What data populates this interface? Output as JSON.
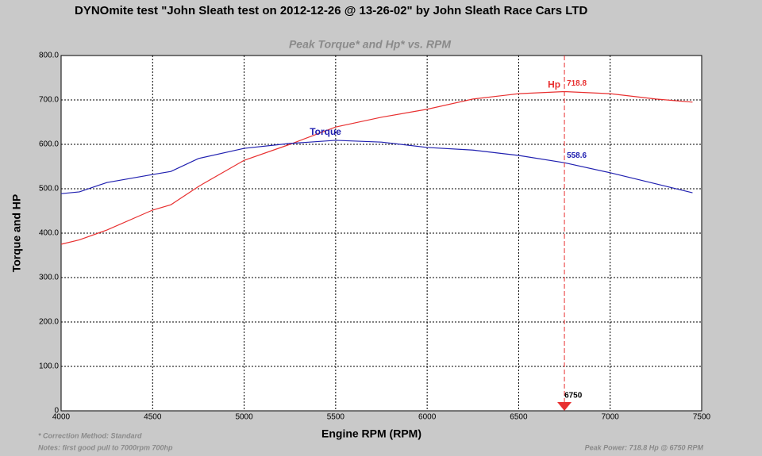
{
  "chart_data": {
    "type": "line",
    "title": "DYNOmite test \"John Sleath test on 2012-12-26 @ 13-26-02\" by John Sleath Race Cars LTD",
    "subtitle": "Peak Torque* and Hp* vs. RPM",
    "x_label": "Engine RPM (RPM)",
    "y_label": "Torque and HP",
    "x": [
      4000,
      4100,
      4250,
      4500,
      4600,
      4750,
      5000,
      5250,
      5500,
      5750,
      6000,
      6250,
      6500,
      6750,
      7000,
      7250,
      7450
    ],
    "series": [
      {
        "name": "Hp",
        "color": "#e83030",
        "values": [
          375,
          385,
          407,
          452,
          464,
          505,
          564,
          600,
          639,
          661,
          679,
          702,
          714,
          718.8,
          714,
          702,
          695
        ]
      },
      {
        "name": "Torque",
        "color": "#2020b0",
        "values": [
          489,
          493,
          514,
          532,
          539,
          568,
          591,
          602,
          609,
          605,
          593,
          587,
          575,
          558.6,
          536,
          511,
          491
        ]
      }
    ],
    "xlim": [
      4000,
      7500
    ],
    "xticks": [
      4000,
      4500,
      5000,
      5500,
      6000,
      6500,
      7000,
      7500
    ],
    "ylim": [
      0,
      800
    ],
    "yticks": [
      {
        "value": 0,
        "label": "0"
      },
      {
        "value": 100,
        "label": "100.0"
      },
      {
        "value": 200,
        "label": "200.0"
      },
      {
        "value": 300,
        "label": "300.0"
      },
      {
        "value": 400,
        "label": "400.0"
      },
      {
        "value": 500,
        "label": "500.0"
      },
      {
        "value": 600,
        "label": "600.0"
      },
      {
        "value": 700,
        "label": "700.0"
      },
      {
        "value": 800,
        "label": "800.0"
      }
    ],
    "grid": true,
    "cursor_x": 6750,
    "correction_note": "* Correction Method: Standard",
    "notes": "Notes: first good pull to 7000rpm 700hp",
    "peak_note": "Peak Power: 718.8 Hp @ 6750 RPM"
  }
}
